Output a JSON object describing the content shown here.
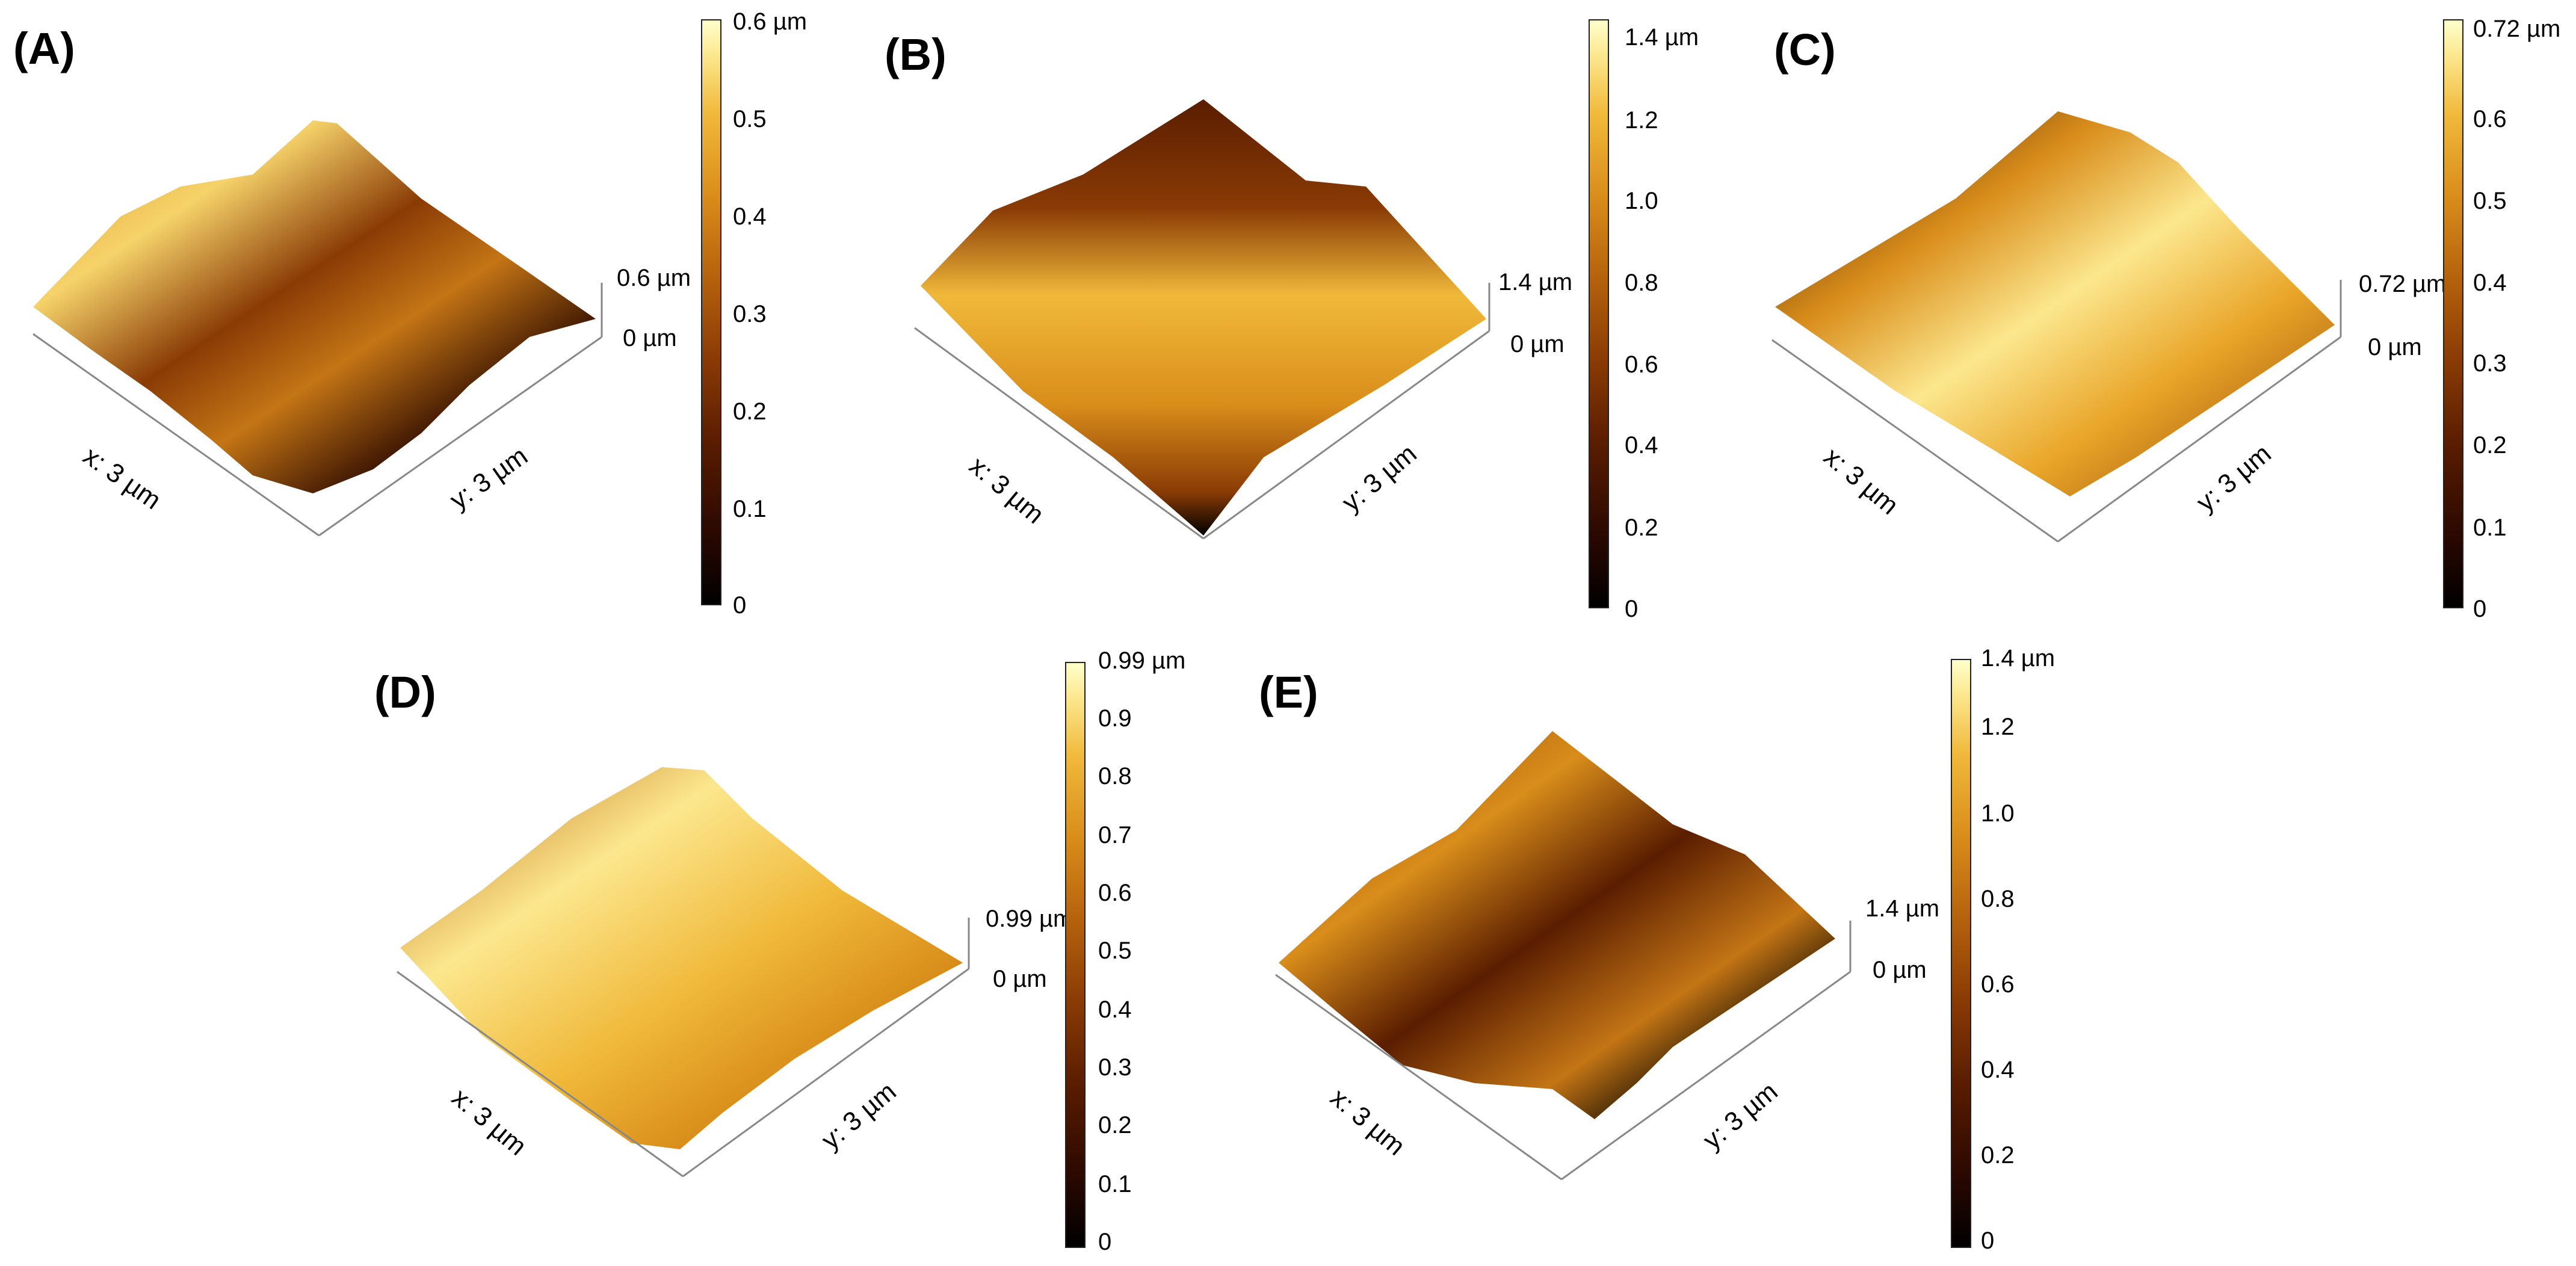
{
  "panels": [
    {
      "label": "(A)",
      "x_axis": "x: 3 µm",
      "y_axis": "y: 3 µm",
      "z_top": "0.6 µm",
      "z_bottom": "0 µm",
      "colorbar_ticks": [
        "0.6 µm",
        "0.5",
        "0.4",
        "0.3",
        "0.2",
        "0.1",
        "0"
      ]
    },
    {
      "label": "(B)",
      "x_axis": "x: 3 µm",
      "y_axis": "y: 3 µm",
      "z_top": "1.4 µm",
      "z_bottom": "0 µm",
      "colorbar_ticks": [
        "1.4 µm",
        "1.2",
        "1.0",
        "0.8",
        "0.6",
        "0.4",
        "0.2",
        "0"
      ]
    },
    {
      "label": "(C)",
      "x_axis": "x: 3 µm",
      "y_axis": "y: 3 µm",
      "z_top": "0.72 µm",
      "z_bottom": "0 µm",
      "colorbar_ticks": [
        "0.72 µm",
        "0.6",
        "0.5",
        "0.4",
        "0.3",
        "0.2",
        "0.1",
        "0"
      ]
    },
    {
      "label": "(D)",
      "x_axis": "x: 3 µm",
      "y_axis": "y: 3 µm",
      "z_top": "0.99 µm",
      "z_bottom": "0 µm",
      "colorbar_ticks": [
        "0.99 µm",
        "0.9",
        "0.8",
        "0.7",
        "0.6",
        "0.5",
        "0.4",
        "0.3",
        "0.2",
        "0.1",
        "0"
      ]
    },
    {
      "label": "(E)",
      "x_axis": "x: 3 µm",
      "y_axis": "y: 3 µm",
      "z_top": "1.4 µm",
      "z_bottom": "0 µm",
      "colorbar_ticks": [
        "1.4 µm",
        "1.2",
        "1.0",
        "0.8",
        "0.6",
        "0.4",
        "0.2",
        "0"
      ]
    }
  ]
}
